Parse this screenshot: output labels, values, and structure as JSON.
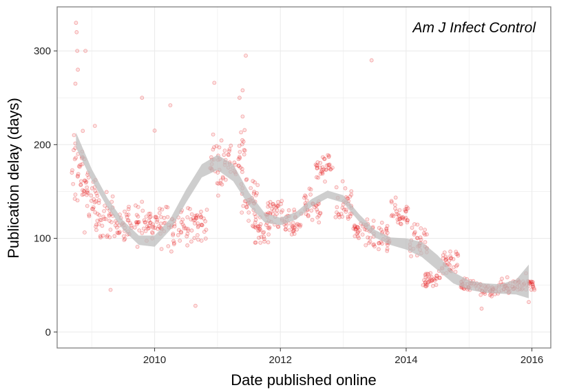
{
  "chart_data": {
    "type": "scatter",
    "xlabel": "Date published online",
    "ylabel": "Publication delay (days)",
    "annotation": "Am J Infect Control",
    "xlim": [
      2008.45,
      2016.3
    ],
    "ylim": [
      -17,
      347
    ],
    "x_ticks": [
      2010,
      2012,
      2014,
      2016
    ],
    "y_ticks": [
      0,
      100,
      200,
      300
    ],
    "grid": true,
    "colors": {
      "points": "#e41a1c",
      "band": "#bdbdbd",
      "border": "#7f7f7f",
      "grid": "#ebebeb"
    },
    "points_description": "Individual articles; semi-transparent red points",
    "anchors": [
      [
        2008.8,
        170,
        60
      ],
      [
        2009.0,
        140,
        45
      ],
      [
        2009.2,
        125,
        35
      ],
      [
        2009.5,
        115,
        30
      ],
      [
        2009.8,
        115,
        30
      ],
      [
        2010.1,
        118,
        35
      ],
      [
        2010.4,
        110,
        35
      ],
      [
        2010.7,
        115,
        30
      ],
      [
        2011.0,
        180,
        40
      ],
      [
        2011.3,
        190,
        40
      ],
      [
        2011.5,
        140,
        35
      ],
      [
        2011.7,
        110,
        20
      ],
      [
        2011.9,
        130,
        25
      ],
      [
        2012.2,
        115,
        20
      ],
      [
        2012.5,
        135,
        25
      ],
      [
        2012.7,
        175,
        20
      ],
      [
        2013.0,
        135,
        30
      ],
      [
        2013.3,
        105,
        20
      ],
      [
        2013.6,
        100,
        25
      ],
      [
        2013.9,
        125,
        25
      ],
      [
        2014.2,
        95,
        30
      ],
      [
        2014.4,
        55,
        15
      ],
      [
        2014.7,
        75,
        20
      ],
      [
        2015.0,
        50,
        10
      ],
      [
        2015.3,
        45,
        10
      ],
      [
        2015.6,
        48,
        12
      ],
      [
        2015.9,
        50,
        15
      ]
    ],
    "outliers": [
      [
        2008.75,
        330
      ],
      [
        2008.76,
        320
      ],
      [
        2008.77,
        300
      ],
      [
        2008.78,
        280
      ],
      [
        2008.74,
        265
      ],
      [
        2008.9,
        300
      ],
      [
        2009.05,
        220
      ],
      [
        2009.8,
        250
      ],
      [
        2010.0,
        215
      ],
      [
        2010.25,
        242
      ],
      [
        2010.95,
        266
      ],
      [
        2011.35,
        250
      ],
      [
        2011.4,
        258
      ],
      [
        2011.45,
        295
      ],
      [
        2011.4,
        230
      ],
      [
        2013.45,
        290
      ],
      [
        2010.65,
        28
      ],
      [
        2015.2,
        25
      ],
      [
        2015.95,
        32
      ],
      [
        2009.3,
        45
      ]
    ],
    "smooth": [
      [
        2008.75,
        205,
        8
      ],
      [
        2009.0,
        168,
        6
      ],
      [
        2009.25,
        138,
        5
      ],
      [
        2009.5,
        114,
        5
      ],
      [
        2009.75,
        98,
        5
      ],
      [
        2010.0,
        97,
        6
      ],
      [
        2010.25,
        115,
        6
      ],
      [
        2010.5,
        145,
        7
      ],
      [
        2010.75,
        172,
        7
      ],
      [
        2011.0,
        181,
        8
      ],
      [
        2011.25,
        170,
        9
      ],
      [
        2011.5,
        142,
        7
      ],
      [
        2011.75,
        122,
        5
      ],
      [
        2012.0,
        118,
        4
      ],
      [
        2012.25,
        124,
        4
      ],
      [
        2012.5,
        138,
        4
      ],
      [
        2012.75,
        147,
        4
      ],
      [
        2013.0,
        142,
        4
      ],
      [
        2013.25,
        122,
        4
      ],
      [
        2013.5,
        105,
        4
      ],
      [
        2013.75,
        97,
        4
      ],
      [
        2014.0,
        94,
        6
      ],
      [
        2014.25,
        88,
        8
      ],
      [
        2014.5,
        74,
        8
      ],
      [
        2014.75,
        58,
        6
      ],
      [
        2015.0,
        50,
        5
      ],
      [
        2015.25,
        47,
        5
      ],
      [
        2015.5,
        46,
        5
      ],
      [
        2015.75,
        48,
        8
      ],
      [
        2015.95,
        54,
        18
      ]
    ]
  }
}
